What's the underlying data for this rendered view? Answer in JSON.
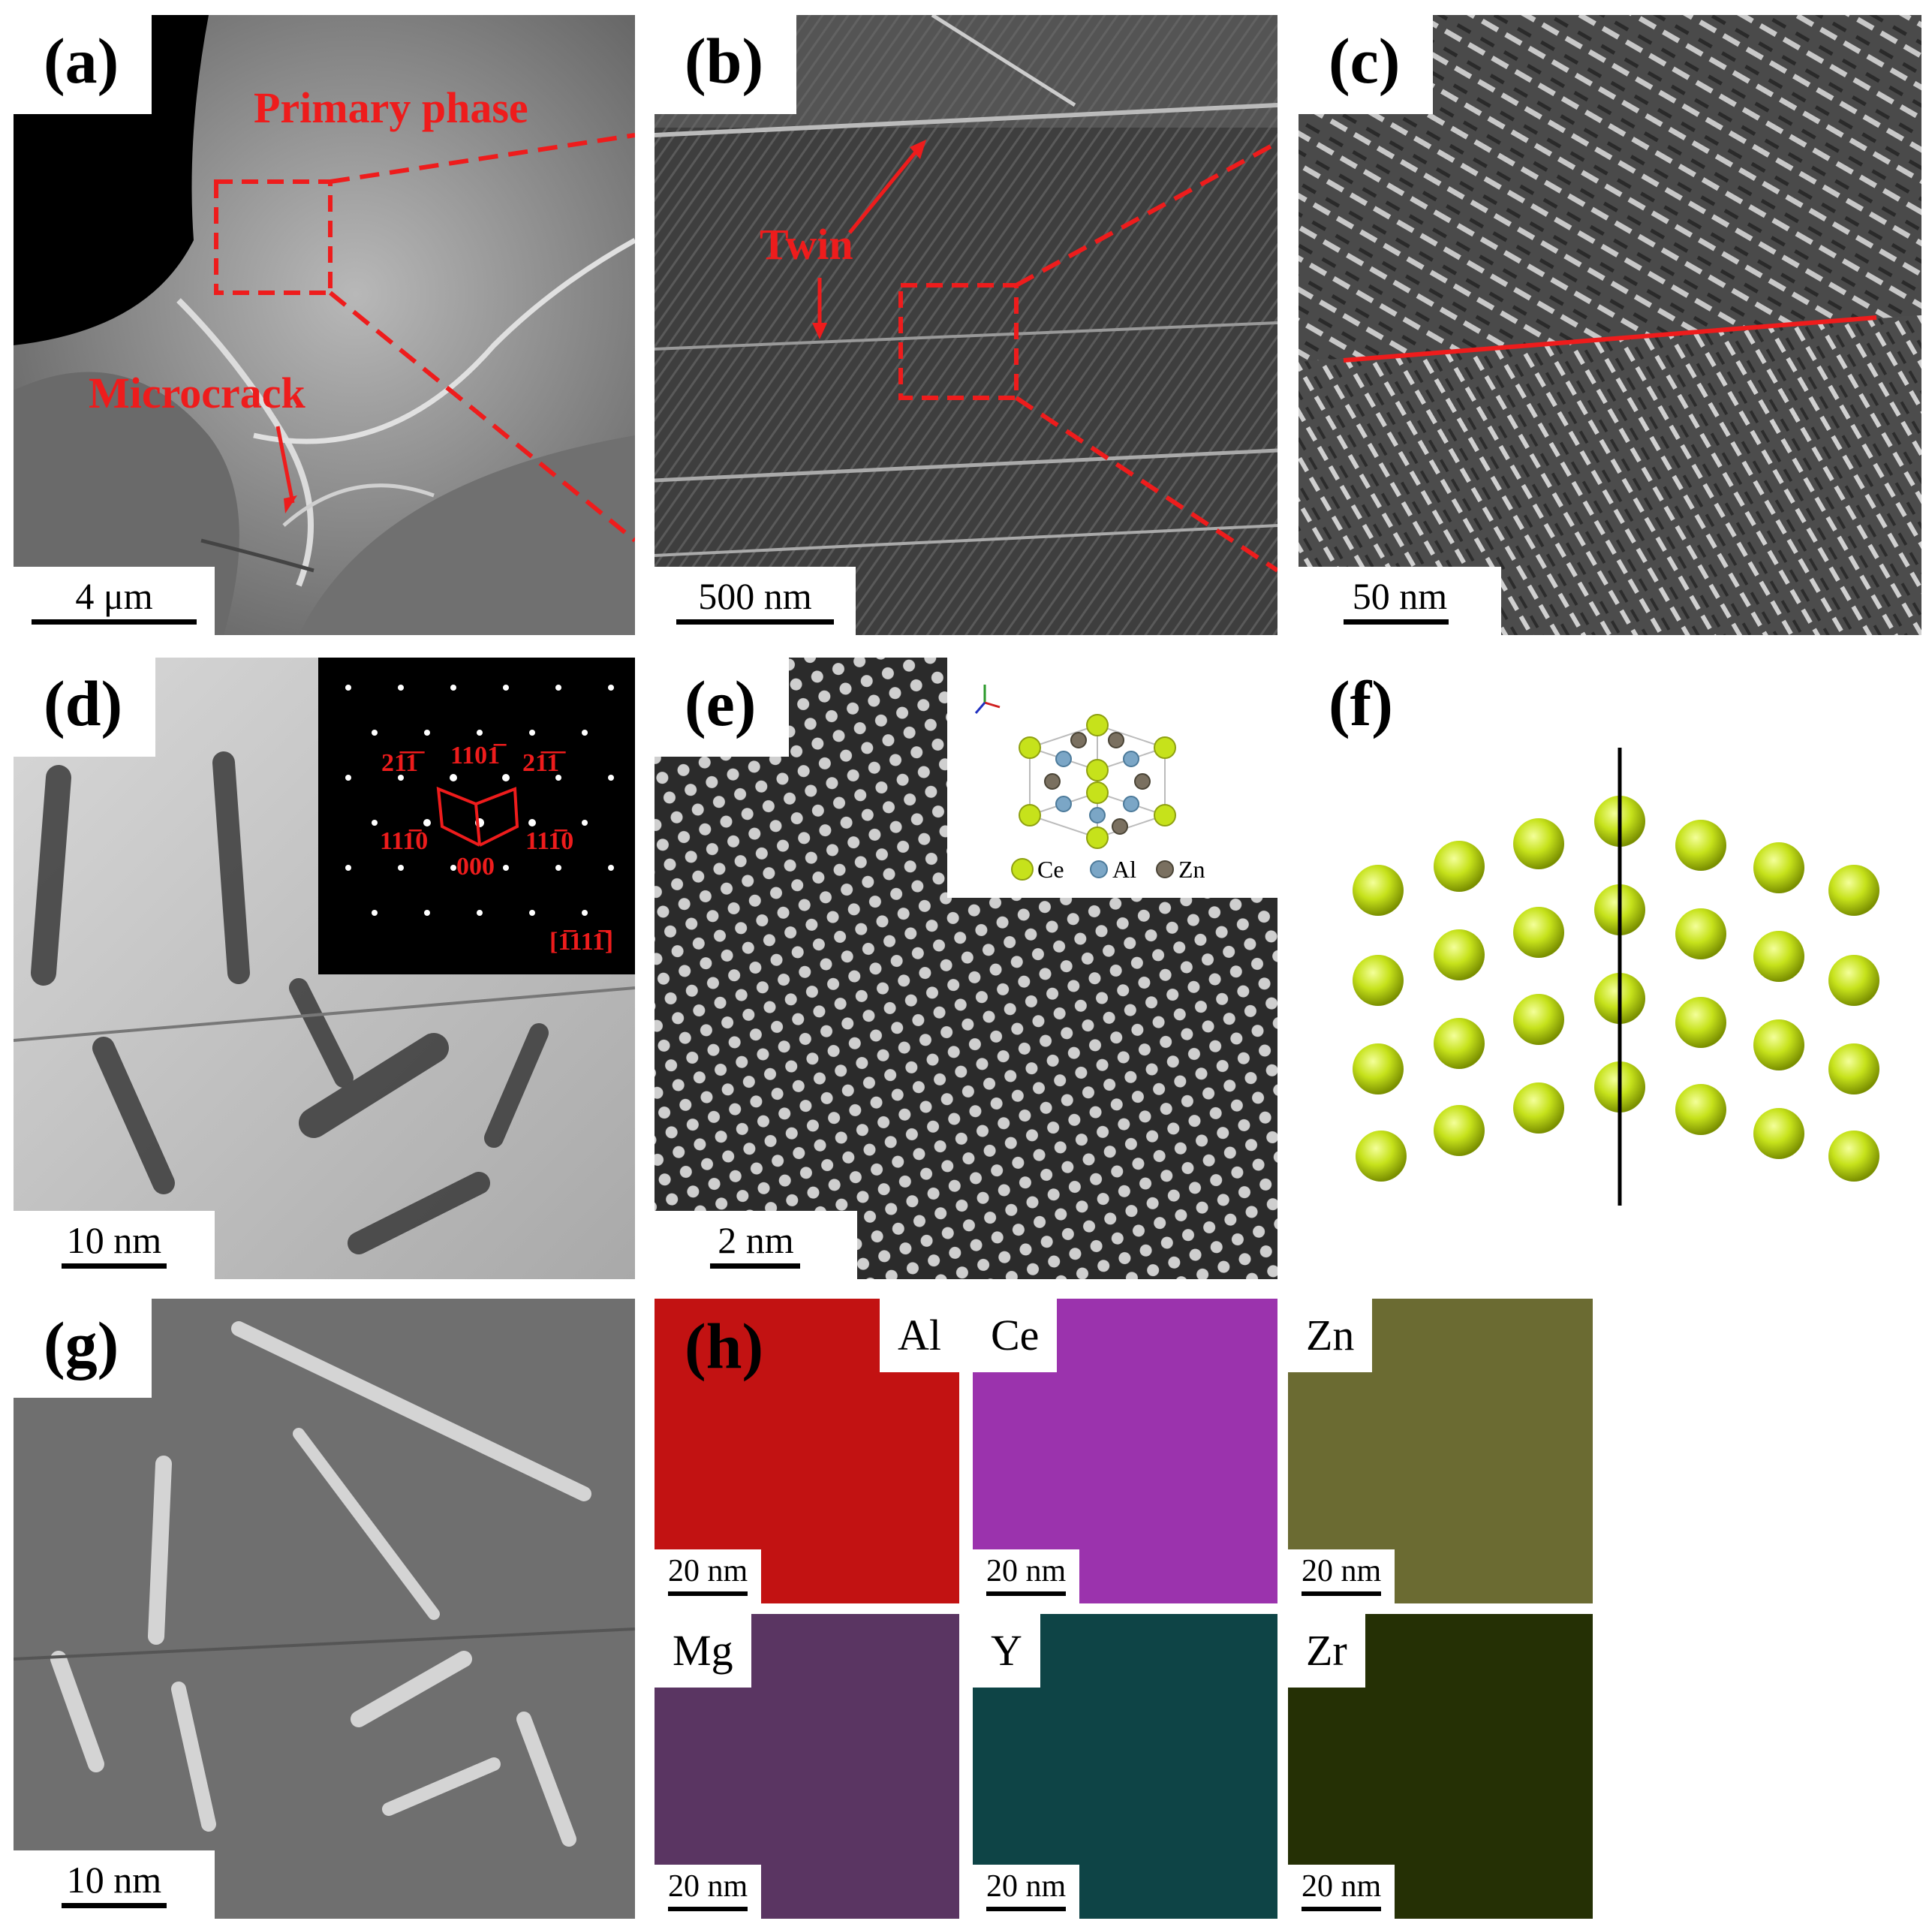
{
  "panels": {
    "a": {
      "label": "(a)",
      "scale": "4 μm",
      "primary": "Primary phase",
      "microcrack": "Microcrack"
    },
    "b": {
      "label": "(b)",
      "scale": "500 nm",
      "twin": "Twin"
    },
    "c": {
      "label": "(c)",
      "scale": "50 nm"
    },
    "d": {
      "label": "(d)",
      "scale": "10 nm",
      "diffraction": {
        "s1": "21̅1̅",
        "s2": "1101̅",
        "s3": "21̅1̅",
        "s4": "111̅0",
        "s5": "000",
        "s6": "111̅0",
        "zone": "[1̅111̅]"
      }
    },
    "e": {
      "label": "(e)",
      "scale": "2 nm",
      "legend": [
        "Ce",
        "Al",
        "Zn"
      ]
    },
    "f": {
      "label": "(f)"
    },
    "g": {
      "label": "(g)",
      "scale": "10 nm"
    },
    "h": {
      "label": "(h)",
      "maps": [
        {
          "element": "Al",
          "scale": "20 nm",
          "color": "#d81414"
        },
        {
          "element": "Ce",
          "scale": "20 nm",
          "color": "#b23fc4"
        },
        {
          "element": "Zn",
          "scale": "20 nm",
          "color": "#b8b84a"
        },
        {
          "element": "Mg",
          "scale": "20 nm",
          "color": "#9a5aa3"
        },
        {
          "element": "Y",
          "scale": "20 nm",
          "color": "#1e8c90"
        },
        {
          "element": "Zr",
          "scale": "20 nm",
          "color": "#6a8a16"
        }
      ]
    }
  },
  "colors": {
    "annotation": "#ee1c1c",
    "atom": "#c6e21b"
  }
}
